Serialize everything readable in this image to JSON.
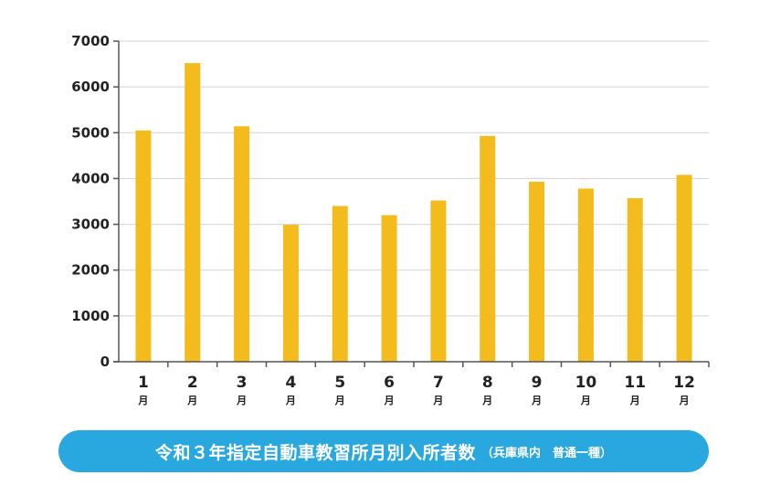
{
  "chart_data": {
    "type": "bar",
    "title": "令和３年指定自動車教習所月別入所者数",
    "subtitle": "（兵庫県内　普通一種）",
    "categories": [
      "1",
      "2",
      "3",
      "4",
      "5",
      "6",
      "7",
      "8",
      "9",
      "10",
      "11",
      "12"
    ],
    "category_unit": "月",
    "values": [
      5050,
      6520,
      5140,
      2990,
      3400,
      3200,
      3520,
      4930,
      3930,
      3780,
      3570,
      4080
    ],
    "ylim": [
      0,
      7000
    ],
    "yticks": [
      "0",
      "1000",
      "2000",
      "3000",
      "4000",
      "5000",
      "6000",
      "7000"
    ],
    "grid": true,
    "colors": {
      "bar": "#f4bb1d",
      "title_bg": "#29a8e0",
      "grid": "#d3d3d3",
      "axis": "#555555"
    }
  }
}
